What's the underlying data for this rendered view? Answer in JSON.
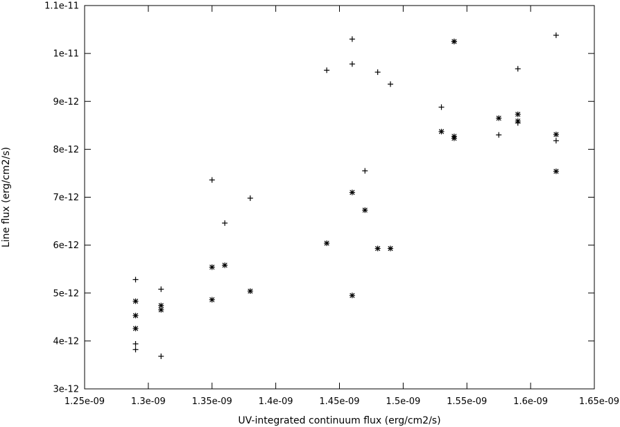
{
  "chart_data": {
    "type": "scatter",
    "title": "",
    "xlabel": "UV-integrated continuum flux (erg/cm2/s)",
    "ylabel": "Line flux (erg/cm2/s)",
    "xlim": [
      1.25e-09,
      1.65e-09
    ],
    "ylim": [
      3e-12,
      1.1e-11
    ],
    "x_ticks": [
      1.25e-09,
      1.3e-09,
      1.35e-09,
      1.4e-09,
      1.45e-09,
      1.5e-09,
      1.55e-09,
      1.6e-09,
      1.65e-09
    ],
    "x_tick_labels": [
      "1.25e-09",
      "1.3e-09",
      "1.35e-09",
      "1.4e-09",
      "1.45e-09",
      "1.5e-09",
      "1.55e-09",
      "1.6e-09",
      "1.65e-09"
    ],
    "y_ticks": [
      3e-12,
      4e-12,
      5e-12,
      6e-12,
      7e-12,
      8e-12,
      9e-12,
      1e-11,
      1.1e-11
    ],
    "y_tick_labels": [
      "3e-12",
      "4e-12",
      "5e-12",
      "6e-12",
      "7e-12",
      "8e-12",
      "9e-12",
      "1e-11",
      "1.1e-11"
    ],
    "grid": false,
    "legend": "none",
    "color": "#000000",
    "series": [
      {
        "marker": "plus",
        "x": [
          1.29e-09,
          1.29e-09,
          1.29e-09,
          1.31e-09,
          1.31e-09,
          1.35e-09,
          1.36e-09,
          1.38e-09,
          1.44e-09,
          1.46e-09,
          1.46e-09,
          1.47e-09,
          1.48e-09,
          1.49e-09,
          1.53e-09,
          1.54e-09,
          1.575e-09,
          1.59e-09,
          1.59e-09,
          1.62e-09,
          1.62e-09
        ],
        "y": [
          5.28e-12,
          3.94e-12,
          3.82e-12,
          5.08e-12,
          3.68e-12,
          7.36e-12,
          6.46e-12,
          6.98e-12,
          9.65e-12,
          1.03e-11,
          9.78e-12,
          7.55e-12,
          9.61e-12,
          9.36e-12,
          8.88e-12,
          1.025e-11,
          8.3e-12,
          9.68e-12,
          8.55e-12,
          1.038e-11,
          8.18e-12
        ]
      },
      {
        "marker": "star",
        "x": [
          1.29e-09,
          1.29e-09,
          1.29e-09,
          1.31e-09,
          1.31e-09,
          1.35e-09,
          1.35e-09,
          1.36e-09,
          1.38e-09,
          1.44e-09,
          1.46e-09,
          1.46e-09,
          1.47e-09,
          1.48e-09,
          1.49e-09,
          1.53e-09,
          1.54e-09,
          1.54e-09,
          1.54e-09,
          1.575e-09,
          1.59e-09,
          1.59e-09,
          1.62e-09,
          1.62e-09
        ],
        "y": [
          4.83e-12,
          4.53e-12,
          4.26e-12,
          4.74e-12,
          4.65e-12,
          5.54e-12,
          4.86e-12,
          5.58e-12,
          5.04e-12,
          6.04e-12,
          7.1e-12,
          4.95e-12,
          6.73e-12,
          5.93e-12,
          5.93e-12,
          8.37e-12,
          8.27e-12,
          8.23e-12,
          1.025e-11,
          8.65e-12,
          8.73e-12,
          8.59e-12,
          8.31e-12,
          7.54e-12
        ]
      }
    ]
  }
}
